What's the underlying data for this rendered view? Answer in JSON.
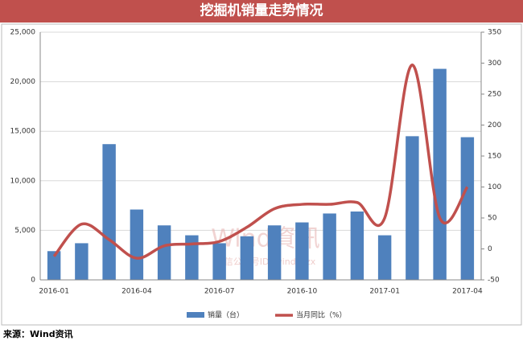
{
  "chart_data": {
    "type": "bar_line",
    "title": "挖掘机销量走势情况",
    "categories": [
      "2016-01",
      null,
      null,
      "2016-04",
      null,
      null,
      "2016-07",
      null,
      null,
      "2016-10",
      null,
      null,
      "2017-01",
      null,
      null,
      "2017-04"
    ],
    "series": [
      {
        "name": "销量（台）",
        "color": "#4f81bd",
        "type": "bar",
        "values": [
          2900,
          3700,
          13700,
          7100,
          5500,
          4500,
          3700,
          4400,
          5500,
          5800,
          6700,
          6900,
          4500,
          14500,
          21300,
          14400
        ]
      },
      {
        "name": "当月同比（%）",
        "color": "#c0504d",
        "type": "line",
        "axis": "y2",
        "values": [
          -12,
          40,
          15,
          -15,
          5,
          8,
          12,
          35,
          65,
          72,
          72,
          75,
          50,
          297,
          50,
          100
        ]
      }
    ],
    "ylim": [
      0,
      25000
    ],
    "yticks": [
      0,
      {
        "value": 5000,
        "label": "5,000"
      },
      {
        "value": 10000,
        "label": "10,000"
      },
      {
        "value": 15000,
        "label": "15,000"
      },
      {
        "value": 20000,
        "label": "20,000"
      },
      {
        "value": 25000,
        "label": "25,000"
      }
    ],
    "y2lim": [
      -50,
      350
    ],
    "y2ticks": [
      -50,
      0,
      50,
      100,
      150,
      200,
      250,
      300,
      350
    ],
    "grid": true,
    "legend": "bottom",
    "watermark": [
      "Wind資訊",
      "微信公众号ID: windzxzx"
    ],
    "source": "来源：Wind资讯"
  }
}
